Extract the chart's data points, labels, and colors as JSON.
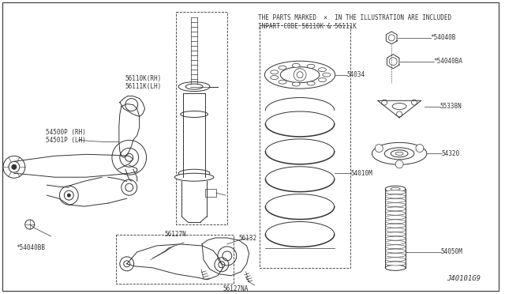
{
  "bg_color": "#ffffff",
  "title_note1": "THE PARTS MARKED  ×  IN THE ILLUSTRATION ARE INCLUDED",
  "title_note2": "INPART CODE 56110K & 56111K",
  "diagram_id": "J40101G9",
  "lw": 0.7,
  "dark": "#333333"
}
